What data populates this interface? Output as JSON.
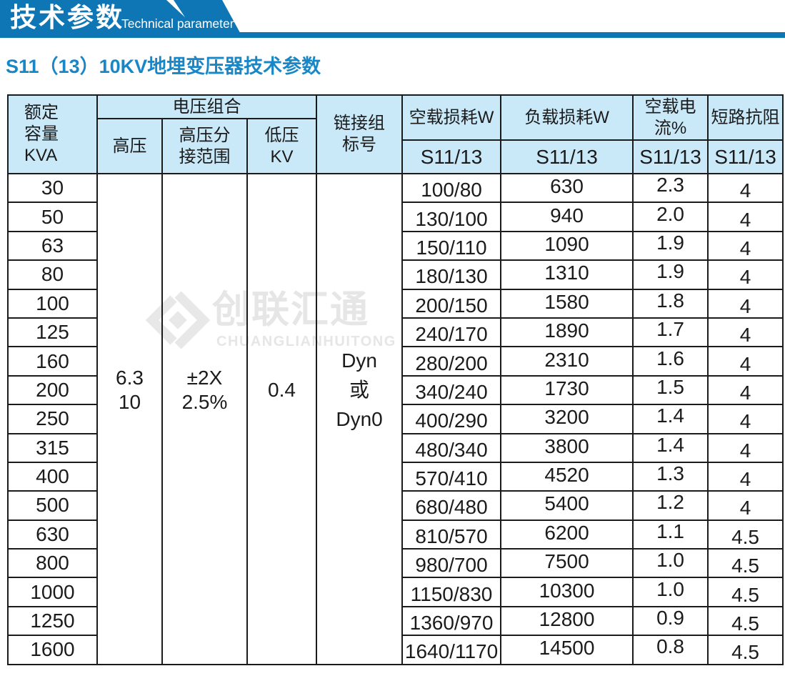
{
  "banner": {
    "title_cn": "技术参数",
    "title_en": "Technical parameter"
  },
  "page": {
    "title": "S11（13）10KV地埋变压器技术参数"
  },
  "watermark": {
    "name_cn": "创联汇通",
    "name_en": "CHUANGLIANHUITONG"
  },
  "colors": {
    "banner_blue": "#0e76b4",
    "header_cell_bg": "#c9e8f8",
    "title_blue": "#1787c7",
    "border_black": "#1b1b1b",
    "watermark_gray": "#e6e6e6"
  },
  "table": {
    "headers": {
      "rated_capacity": "额定\n容量\nKVA",
      "voltage_group": "电压组合",
      "hv": "高压",
      "hv_tap": "高压分\n接范围",
      "lv": "低压\nKV",
      "vector_group": "链接组\n标号",
      "no_load_loss": "空载损耗W",
      "load_loss": "负载损耗W",
      "no_load_current": "空载电流%",
      "impedance": "短路抗阻",
      "model": "S11/13"
    },
    "merged": {
      "hv": "6.3\n10",
      "hv_tap": "±2X\n2.5%",
      "lv": "0.4",
      "vector_group": "Dyn\n或\nDyn0"
    },
    "rows": [
      {
        "kva": "30",
        "no_load_loss": "100/80",
        "load_loss": "630",
        "no_load_current": "2.3",
        "impedance": "4"
      },
      {
        "kva": "50",
        "no_load_loss": "130/100",
        "load_loss": "940",
        "no_load_current": "2.0",
        "impedance": "4"
      },
      {
        "kva": "63",
        "no_load_loss": "150/110",
        "load_loss": "1090",
        "no_load_current": "1.9",
        "impedance": "4"
      },
      {
        "kva": "80",
        "no_load_loss": "180/130",
        "load_loss": "1310",
        "no_load_current": "1.9",
        "impedance": "4"
      },
      {
        "kva": "100",
        "no_load_loss": "200/150",
        "load_loss": "1580",
        "no_load_current": "1.8",
        "impedance": "4"
      },
      {
        "kva": "125",
        "no_load_loss": "240/170",
        "load_loss": "1890",
        "no_load_current": "1.7",
        "impedance": "4"
      },
      {
        "kva": "160",
        "no_load_loss": "280/200",
        "load_loss": "2310",
        "no_load_current": "1.6",
        "impedance": "4"
      },
      {
        "kva": "200",
        "no_load_loss": "340/240",
        "load_loss": "1730",
        "no_load_current": "1.5",
        "impedance": "4"
      },
      {
        "kva": "250",
        "no_load_loss": "400/290",
        "load_loss": "3200",
        "no_load_current": "1.4",
        "impedance": "4"
      },
      {
        "kva": "315",
        "no_load_loss": "480/340",
        "load_loss": "3800",
        "no_load_current": "1.4",
        "impedance": "4"
      },
      {
        "kva": "400",
        "no_load_loss": "570/410",
        "load_loss": "4520",
        "no_load_current": "1.3",
        "impedance": "4"
      },
      {
        "kva": "500",
        "no_load_loss": "680/480",
        "load_loss": "5400",
        "no_load_current": "1.2",
        "impedance": "4"
      },
      {
        "kva": "630",
        "no_load_loss": "810/570",
        "load_loss": "6200",
        "no_load_current": "1.1",
        "impedance": "4.5"
      },
      {
        "kva": "800",
        "no_load_loss": "980/700",
        "load_loss": "7500",
        "no_load_current": "1.0",
        "impedance": "4.5"
      },
      {
        "kva": "1000",
        "no_load_loss": "1150/830",
        "load_loss": "10300",
        "no_load_current": "1.0",
        "impedance": "4.5"
      },
      {
        "kva": "1250",
        "no_load_loss": "1360/970",
        "load_loss": "12800",
        "no_load_current": "0.9",
        "impedance": "4.5"
      },
      {
        "kva": "1600",
        "no_load_loss": "1640/1170",
        "load_loss": "14500",
        "no_load_current": "0.8",
        "impedance": "4.5"
      }
    ]
  }
}
